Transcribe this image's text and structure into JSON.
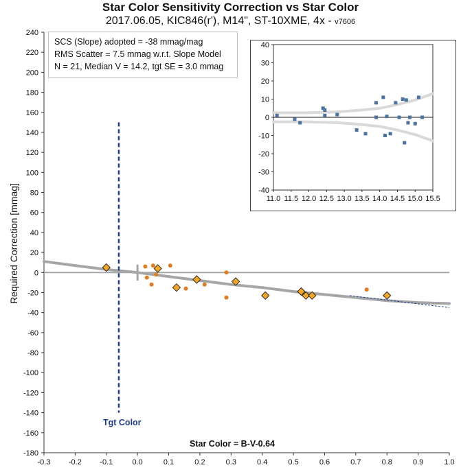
{
  "header": {
    "title": "Star Color Sensitivity Correction vs Star Color",
    "subtitle_main": "2017.06.05, KIC846(r'), M14\", ST-10XME, 4x -",
    "subtitle_version": "v7606"
  },
  "stats": {
    "line1": "SCS (Slope) adopted  =  -38 mmag/mag",
    "line2": "RMS Scatter = 7.5 mmag w.r.t. Slope Model",
    "line3": "N = 21,  Median V = 14.2, tgt SE = 3.0 mmag"
  },
  "target_label": "Tgt Color",
  "colors": {
    "diamond_fill": "#f5a623",
    "diamond_stroke": "#2a2a2a",
    "dot": "#e07b20",
    "model_curve": "#a6a6a6",
    "target_line": "#1f3e8c",
    "inset_points": "#4a73a0",
    "inset_band": "#d9d9d9",
    "zero_line": "#a6a6a6"
  },
  "chart_data": [
    {
      "type": "scatter",
      "xlabel": "Star Color = B-V-0.64",
      "ylabel": "Required Correction [mmag]",
      "xlim": [
        -0.3,
        1.0
      ],
      "ylim": [
        -180,
        240
      ],
      "x_ticks": [
        -0.3,
        -0.2,
        -0.1,
        0,
        0.1,
        0.2,
        0.3,
        0.4,
        0.5,
        0.6,
        0.7,
        0.8,
        0.9,
        1.0
      ],
      "x_tick_labels": [
        "-0.3",
        "-0.2",
        "-0.1",
        "0.0",
        "0.1",
        "0.2",
        "0.3",
        "0.4",
        "0.5",
        "0.6",
        "0.7",
        "0.8",
        "0.9",
        "1.0"
      ],
      "y_ticks": [
        -180,
        -160,
        -140,
        -120,
        -100,
        -80,
        -60,
        -40,
        -20,
        0,
        20,
        40,
        60,
        80,
        100,
        120,
        140,
        160,
        180,
        200,
        220,
        240
      ],
      "grid": false,
      "target_color_x": -0.06,
      "series": [
        {
          "marker": "diamond",
          "points": [
            [
              -0.1,
              5
            ],
            [
              0.065,
              4
            ],
            [
              0.125,
              -15
            ],
            [
              0.19,
              -7
            ],
            [
              0.315,
              -9
            ],
            [
              0.41,
              -23
            ],
            [
              0.525,
              -19
            ],
            [
              0.54,
              -23
            ],
            [
              0.56,
              -23
            ],
            [
              0.8,
              -23
            ]
          ]
        },
        {
          "marker": "dot",
          "points": [
            [
              0.025,
              6
            ],
            [
              0.03,
              -5
            ],
            [
              0.045,
              -12
            ],
            [
              0.05,
              7
            ],
            [
              0.06,
              -2
            ],
            [
              0.105,
              7
            ],
            [
              0.155,
              -16
            ],
            [
              0.215,
              -12
            ],
            [
              0.285,
              0
            ],
            [
              0.285,
              -25
            ],
            [
              0.735,
              -17
            ]
          ]
        }
      ],
      "model_curve": [
        [
          -0.3,
          11
        ],
        [
          -0.2,
          7
        ],
        [
          -0.1,
          3
        ],
        [
          0,
          0
        ],
        [
          0.1,
          -4
        ],
        [
          0.2,
          -8
        ],
        [
          0.3,
          -12
        ],
        [
          0.4,
          -15
        ],
        [
          0.5,
          -19
        ],
        [
          0.6,
          -22
        ],
        [
          0.7,
          -25
        ],
        [
          0.8,
          -28
        ],
        [
          0.9,
          -30
        ],
        [
          1.0,
          -31
        ]
      ],
      "slope_line": [
        [
          0.68,
          -23
        ],
        [
          1.0,
          -35
        ]
      ]
    },
    {
      "type": "scatter",
      "xlim": [
        11.0,
        15.5
      ],
      "ylim": [
        -40,
        40
      ],
      "x_ticks": [
        11.0,
        11.5,
        12.0,
        12.5,
        13.0,
        13.5,
        14.0,
        14.5,
        15.0,
        15.5
      ],
      "x_tick_labels": [
        "11.0",
        "11.5",
        "12.0",
        "12.5",
        "13.0",
        "13.5",
        "14.0",
        "14.5",
        "15.0",
        "15.5"
      ],
      "y_ticks": [
        -40,
        -30,
        -20,
        -10,
        0,
        10,
        20,
        30,
        40
      ],
      "grid": false,
      "points": [
        [
          11.1,
          1
        ],
        [
          11.6,
          -1
        ],
        [
          11.75,
          -3
        ],
        [
          12.4,
          5
        ],
        [
          12.45,
          4
        ],
        [
          12.45,
          1
        ],
        [
          12.8,
          1.5
        ],
        [
          13.35,
          -7
        ],
        [
          13.6,
          -9
        ],
        [
          13.9,
          8
        ],
        [
          13.9,
          0
        ],
        [
          14.1,
          11
        ],
        [
          14.15,
          -10
        ],
        [
          14.2,
          0.5
        ],
        [
          14.3,
          -9
        ],
        [
          14.45,
          8
        ],
        [
          14.55,
          0
        ],
        [
          14.65,
          10
        ],
        [
          14.7,
          -14
        ],
        [
          14.75,
          9.5
        ],
        [
          14.8,
          -3
        ],
        [
          14.85,
          0
        ],
        [
          15.0,
          -3.5
        ],
        [
          15.1,
          11
        ],
        [
          15.2,
          0
        ]
      ],
      "band_upper": [
        [
          11.0,
          2.5
        ],
        [
          12.0,
          2.5
        ],
        [
          12.8,
          3
        ],
        [
          13.5,
          4
        ],
        [
          14.0,
          5
        ],
        [
          14.5,
          7
        ],
        [
          15.0,
          9.5
        ],
        [
          15.5,
          13
        ]
      ],
      "band_lower": [
        [
          11.0,
          -2.5
        ],
        [
          12.0,
          -2.5
        ],
        [
          12.8,
          -3
        ],
        [
          13.5,
          -4
        ],
        [
          14.0,
          -5
        ],
        [
          14.5,
          -7
        ],
        [
          15.0,
          -9.5
        ],
        [
          15.5,
          -13
        ]
      ]
    }
  ]
}
